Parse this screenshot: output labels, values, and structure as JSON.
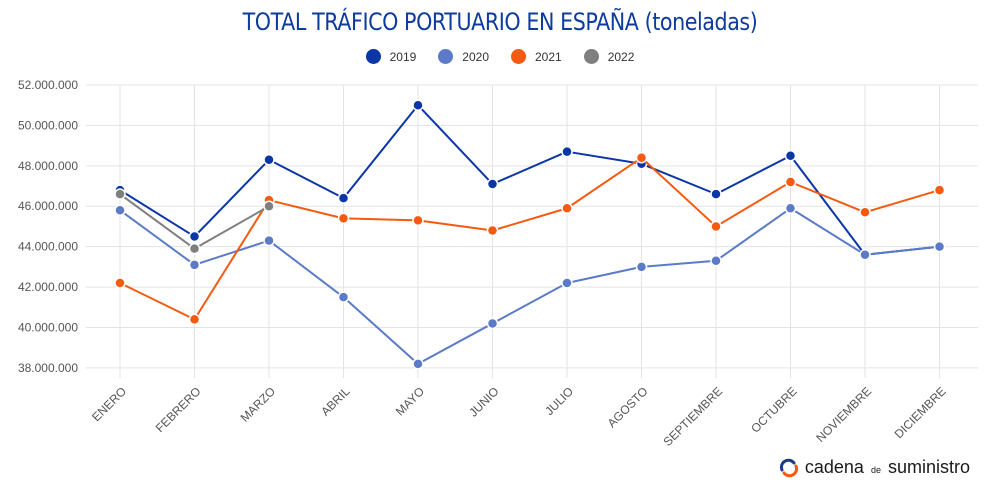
{
  "title": "TOTAL TRÁFICO PORTUARIO EN ESPAÑA (toneladas)",
  "brand": {
    "part1": "cadena",
    "part2": "de",
    "part3": "suministro"
  },
  "colors": {
    "2019": "#0a36a6",
    "2020": "#5b7bc8",
    "2021": "#f45a10",
    "2022": "#7f7f7f",
    "brand_icon_a": "#1a3a8a",
    "brand_icon_b": "#f45a10"
  },
  "chart_data": {
    "type": "line",
    "title": "TOTAL TRÁFICO PORTUARIO EN ESPAÑA (toneladas)",
    "xlabel": "",
    "ylabel": "",
    "categories": [
      "ENERO",
      "FEBRERO",
      "MARZO",
      "ABRIL",
      "MAYO",
      "JUNIO",
      "JULIO",
      "AGOSTO",
      "SEPTIEMBRE",
      "OCTUBRE",
      "NOVIEMBRE",
      "DICIEMBRE"
    ],
    "ylim": [
      37500000,
      52000000
    ],
    "yticks": [
      38000000,
      40000000,
      42000000,
      44000000,
      46000000,
      48000000,
      50000000,
      52000000
    ],
    "ytick_labels": [
      "38.000.000",
      "40.000.000",
      "42.000.000",
      "44.000.000",
      "46.000.000",
      "48.000.000",
      "50.000.000",
      "52.000.000"
    ],
    "grid": true,
    "legend_position": "top-center",
    "series": [
      {
        "name": "2019",
        "color": "#0a36a6",
        "values": [
          46800000,
          44500000,
          48300000,
          46400000,
          51000000,
          47100000,
          48700000,
          48100000,
          46600000,
          48500000,
          43600000,
          44000000
        ]
      },
      {
        "name": "2020",
        "color": "#5b7bc8",
        "values": [
          45800000,
          43100000,
          44300000,
          41500000,
          38200000,
          40200000,
          42200000,
          43000000,
          43300000,
          45900000,
          43600000,
          44000000
        ]
      },
      {
        "name": "2021",
        "color": "#f45a10",
        "values": [
          42200000,
          40400000,
          46300000,
          45400000,
          45300000,
          44800000,
          45900000,
          48400000,
          45000000,
          47200000,
          45700000,
          46800000
        ]
      },
      {
        "name": "2022",
        "color": "#7f7f7f",
        "values": [
          46600000,
          43900000,
          46000000,
          null,
          null,
          null,
          null,
          null,
          null,
          null,
          null,
          null
        ]
      }
    ]
  }
}
